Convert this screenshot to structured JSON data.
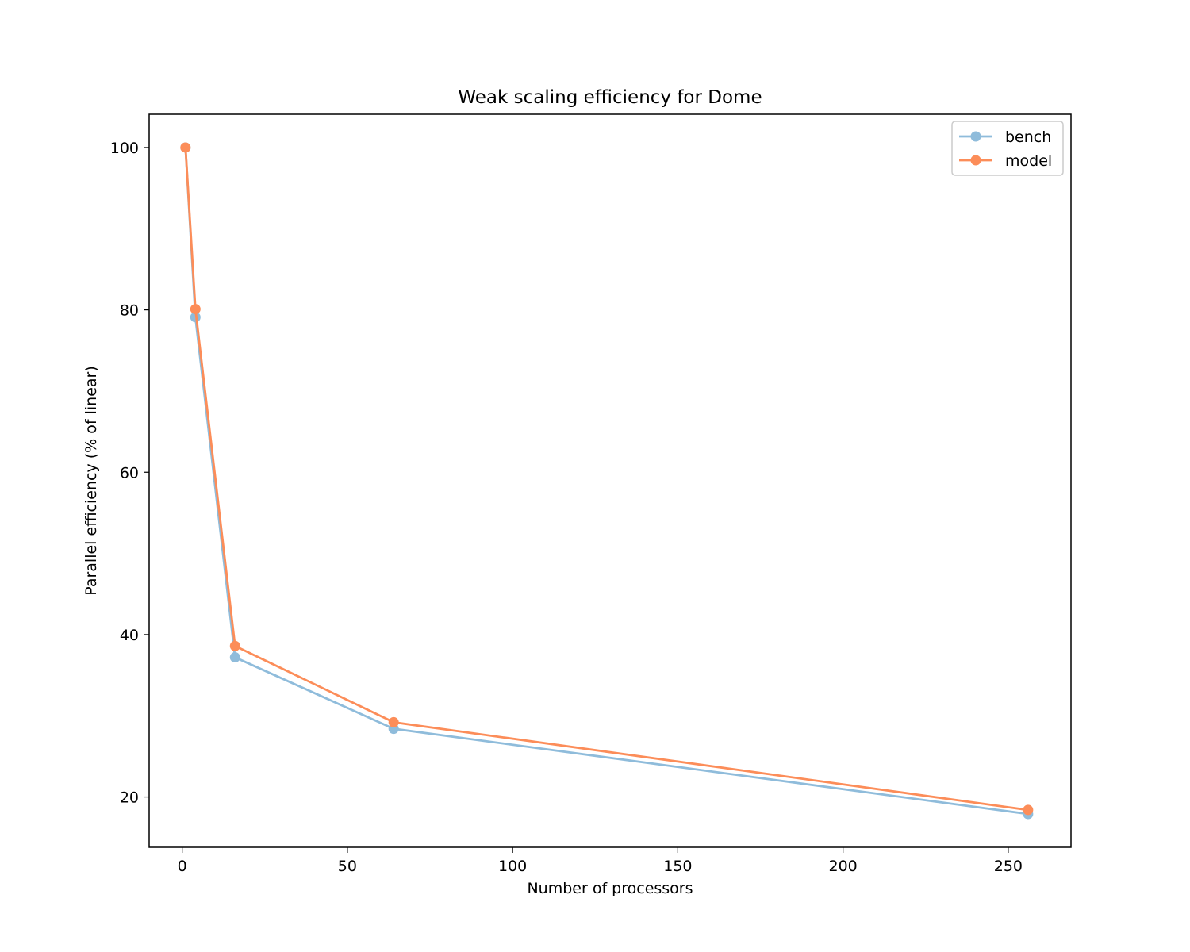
{
  "chart_data": {
    "type": "line",
    "title": "Weak scaling efficiency for Dome",
    "xlabel": "Number of processors",
    "ylabel": "Parallel efficiency (% of linear)",
    "xlim": [
      -10,
      269
    ],
    "ylim": [
      13.8,
      104.1
    ],
    "xticks": [
      0,
      50,
      100,
      150,
      200,
      250
    ],
    "yticks": [
      20,
      40,
      60,
      80,
      100
    ],
    "x": [
      1,
      4,
      16,
      64,
      256
    ],
    "grid": false,
    "legend_position": "upper right",
    "series": [
      {
        "name": "bench",
        "color": "#8fbcdb",
        "values": [
          100,
          79.1,
          37.2,
          28.4,
          17.9
        ]
      },
      {
        "name": "model",
        "color": "#fc8d59",
        "values": [
          100,
          80.1,
          38.6,
          29.2,
          18.4
        ]
      }
    ]
  }
}
